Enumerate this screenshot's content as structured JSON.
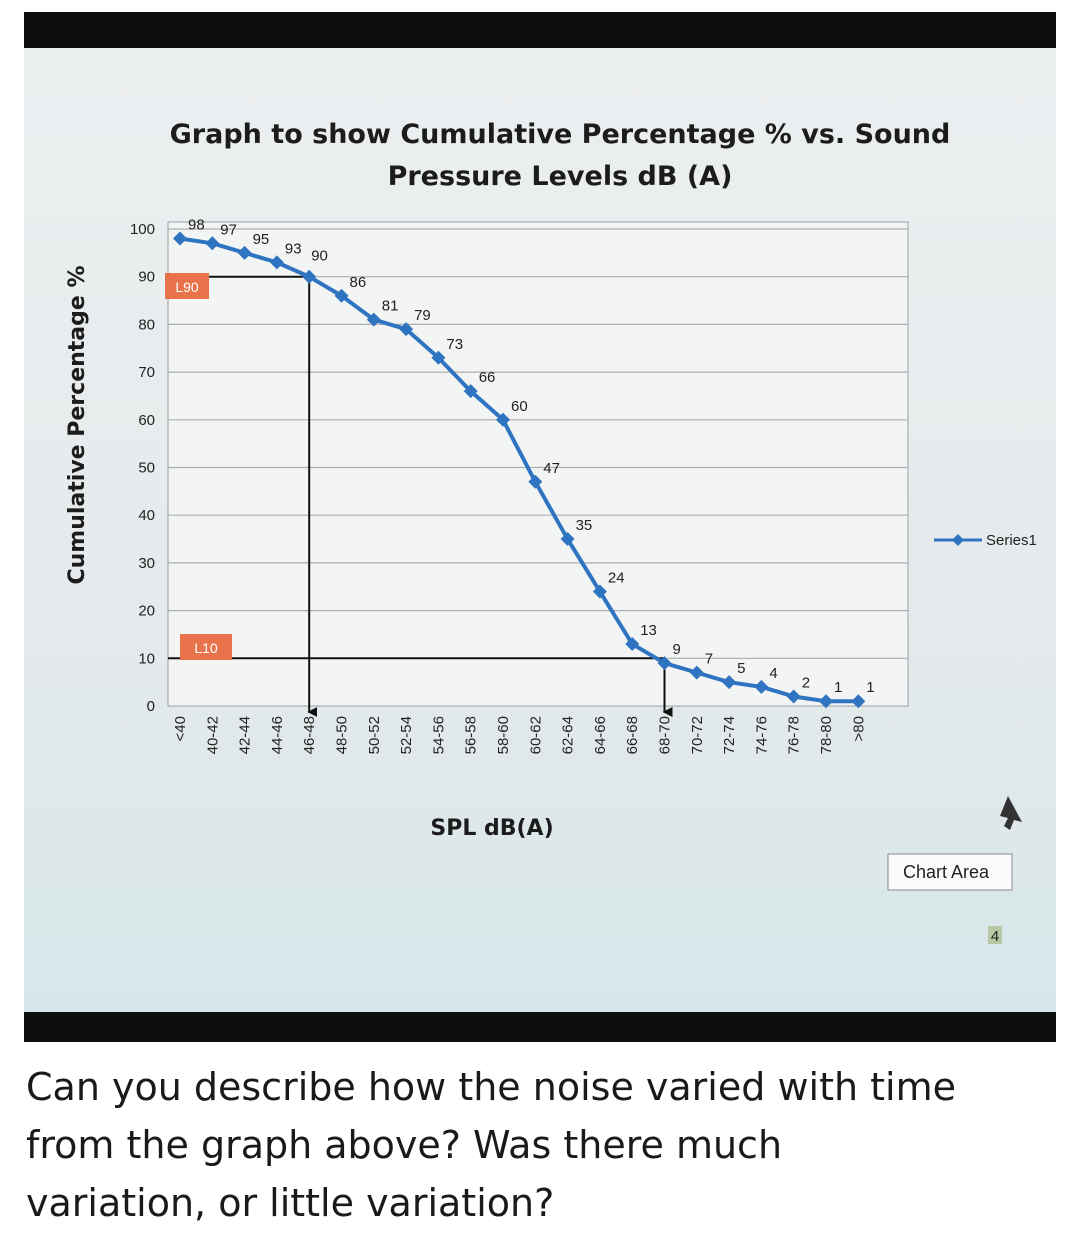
{
  "chart_data": {
    "type": "line",
    "title_line1": "Graph to show Cumulative Percentage % vs. Sound",
    "title_line2": "Pressure Levels dB (A)",
    "xlabel": "SPL dB(A)",
    "ylabel": "Cumulative Percentage %",
    "ylim": [
      0,
      100
    ],
    "yticks": [
      0,
      10,
      20,
      30,
      40,
      50,
      60,
      70,
      80,
      90,
      100
    ],
    "grid": true,
    "legend_position": "right",
    "categories": [
      "<40",
      "40-42",
      "42-44",
      "44-46",
      "46-48",
      "48-50",
      "50-52",
      "52-54",
      "54-56",
      "56-58",
      "58-60",
      "60-62",
      "62-64",
      "64-66",
      "66-68",
      "68-70",
      "70-72",
      "72-74",
      "74-76",
      "76-78",
      "78-80",
      ">80"
    ],
    "series": [
      {
        "name": "Series1",
        "color": "#2f74c0",
        "values": [
          98,
          97,
          95,
          93,
          90,
          86,
          81,
          79,
          73,
          66,
          60,
          47,
          35,
          24,
          13,
          9,
          7,
          5,
          4,
          2,
          1,
          1
        ]
      }
    ],
    "annotations": {
      "l90": {
        "label": "L90",
        "level": 90,
        "category_index": 4
      },
      "l10": {
        "label": "L10",
        "level": 10,
        "category_index": 15
      }
    }
  },
  "ui": {
    "chart_area_label": "Chart Area",
    "badge_text": "4"
  },
  "question": {
    "line1": "Can you describe how the noise varied with time",
    "line2": "from the graph above? Was there much",
    "line3": "variation, or little variation?"
  }
}
